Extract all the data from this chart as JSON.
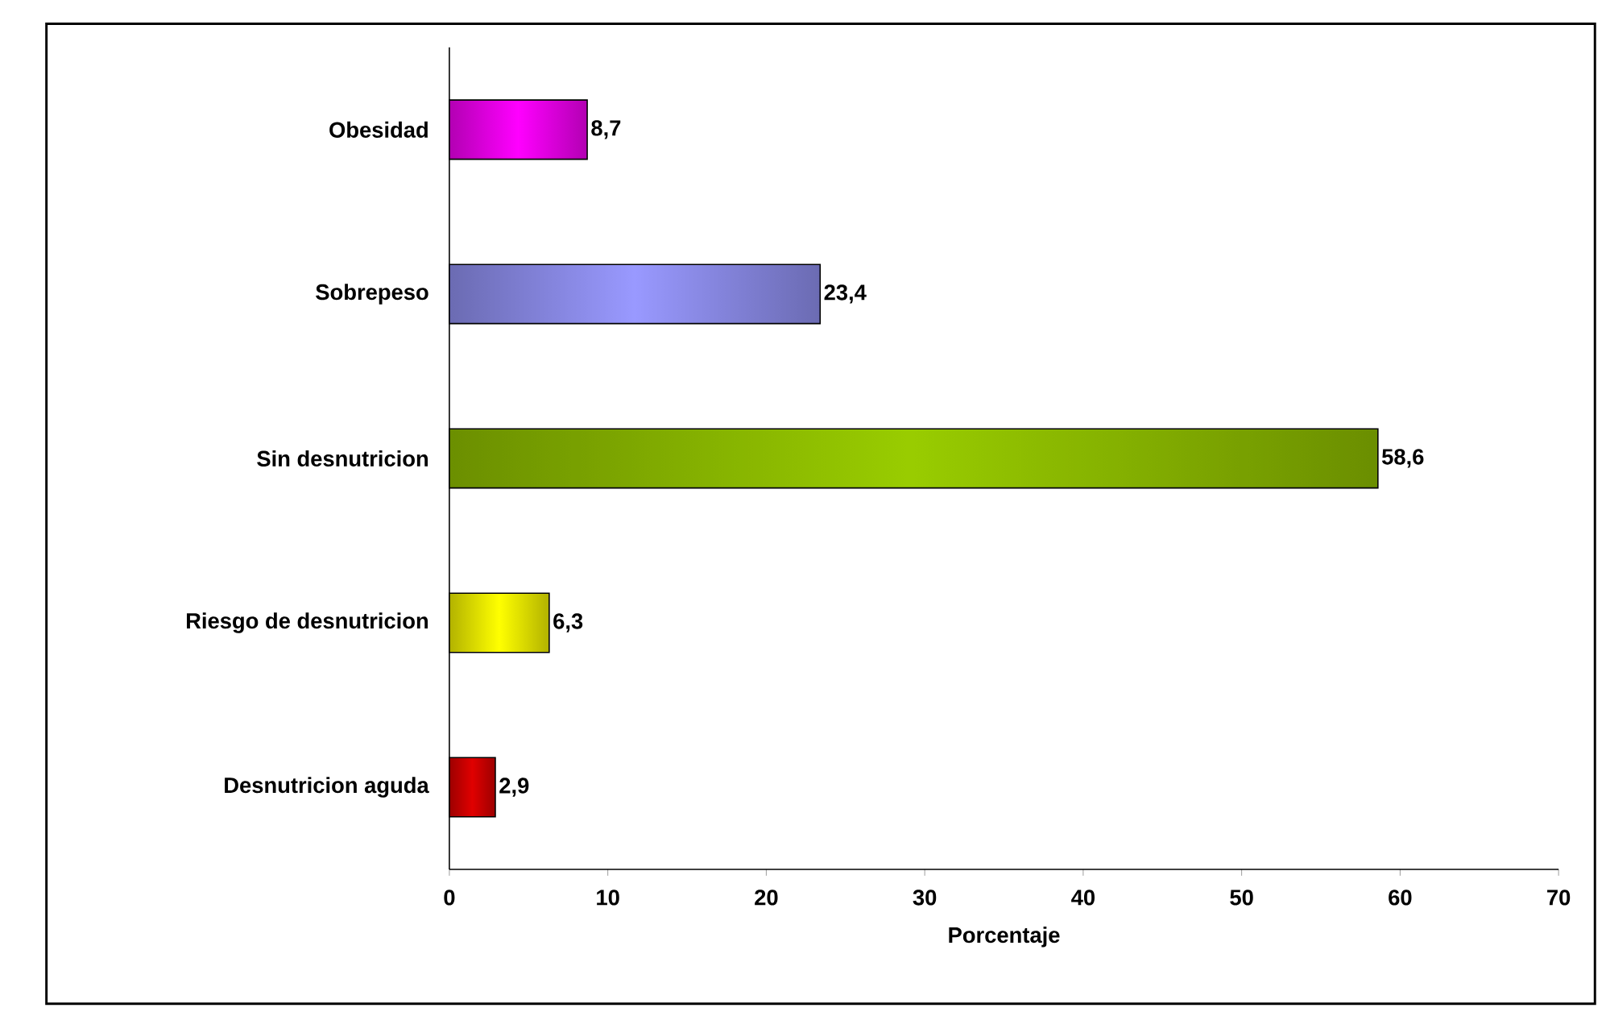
{
  "chart_data": {
    "type": "bar",
    "orientation": "horizontal",
    "xlabel": "Porcentaje",
    "categories": [
      "Obesidad",
      "Sobrepeso",
      "Sin desnutricion",
      "Riesgo de desnutricion",
      "Desnutricion aguda"
    ],
    "values": [
      8.7,
      23.4,
      58.6,
      6.3,
      2.9
    ],
    "value_labels": [
      "8,7",
      "23,4",
      "58,6",
      "6,3",
      "2,9"
    ],
    "colors": [
      "#ff00ff",
      "#9999ff",
      "#99cc00",
      "#ffff00",
      "#e00000"
    ],
    "xlim": [
      0,
      70
    ],
    "xticks": [
      0,
      10,
      20,
      30,
      40,
      50,
      60,
      70
    ],
    "grid": false
  }
}
